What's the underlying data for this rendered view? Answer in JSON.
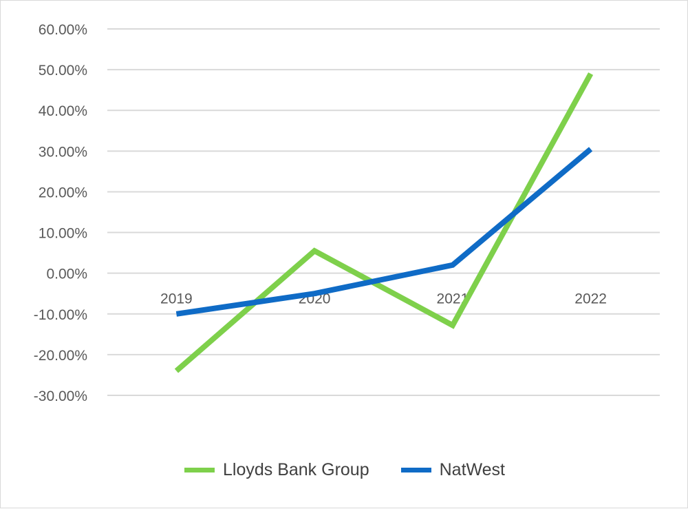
{
  "chart_data": {
    "type": "line",
    "categories": [
      "2019",
      "2020",
      "2021",
      "2022"
    ],
    "series": [
      {
        "name": "Lloyds Bank Group",
        "color": "#7ed04b",
        "values": [
          -24.0,
          5.5,
          -12.8,
          49.0
        ]
      },
      {
        "name": "NatWest",
        "color": "#0f6bc6",
        "values": [
          -10.0,
          -5.0,
          2.0,
          30.5
        ]
      }
    ],
    "yticks": [
      "60.00%",
      "50.00%",
      "40.00%",
      "30.00%",
      "20.00%",
      "10.00%",
      "0.00%",
      "-10.00%",
      "-20.00%",
      "-30.00%"
    ],
    "ylim": [
      -30,
      60
    ],
    "ylabel": "",
    "xlabel": "",
    "title": "",
    "grid": true,
    "legend": "bottom"
  }
}
